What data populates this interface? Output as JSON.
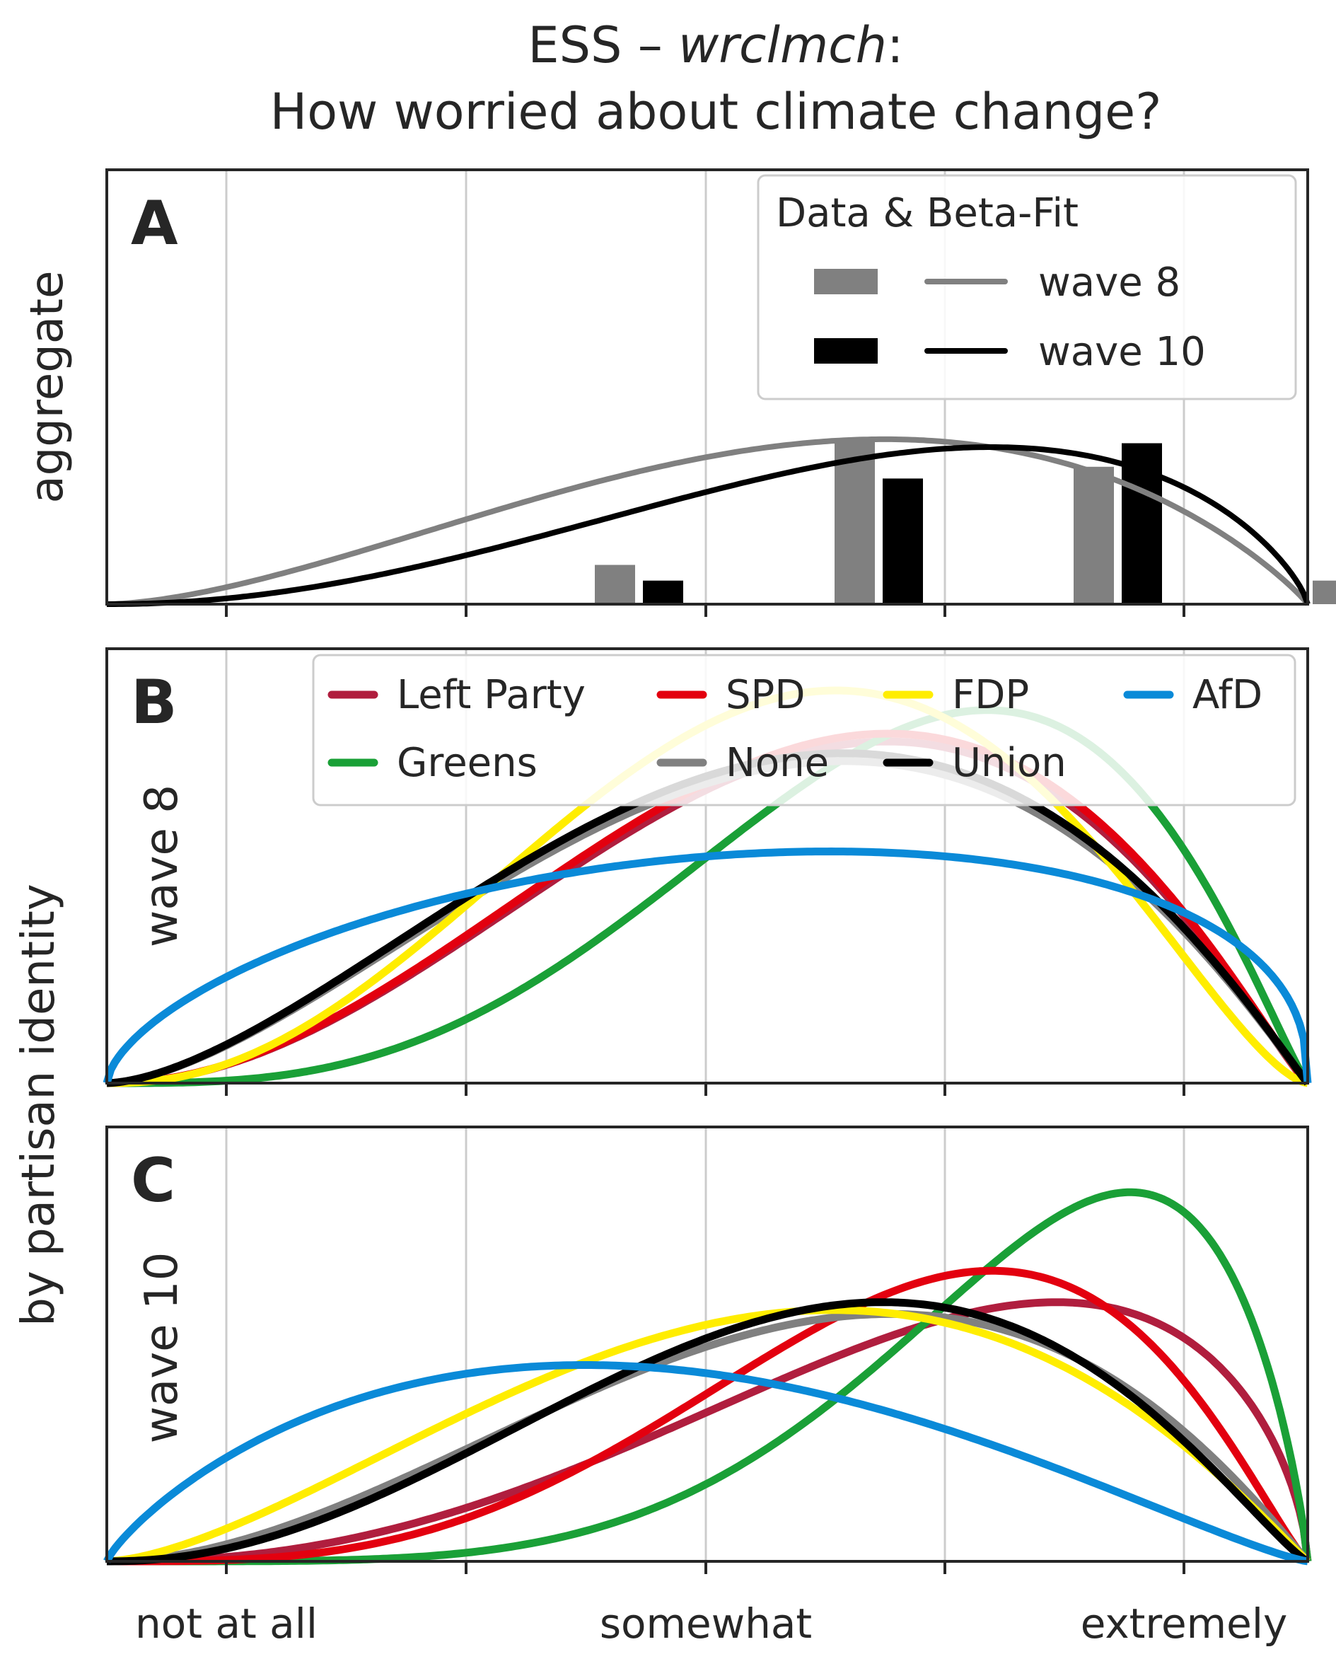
{
  "title": {
    "line1_prefix": "ESS – ",
    "line1_italic": "wrclmch",
    "line1_suffix": ":",
    "line2": "How worried about climate change?"
  },
  "colors": {
    "wave8": "#808080",
    "wave10": "#000000",
    "Left Party": "#b01e3e",
    "SPD": "#e3000f",
    "FDP": "#ffed00",
    "AfD": "#0a8ad8",
    "Greens": "#1aa037",
    "None": "#808080",
    "Union": "#000000",
    "grid": "#cccccc",
    "axes": "#262626"
  },
  "chart_data": [
    {
      "panel": "A",
      "type": "bar",
      "ylabel": "aggregate",
      "legend": {
        "title": "Data & Beta-Fit",
        "placement": "top-right",
        "entries": [
          "wave 8",
          "wave 10"
        ]
      },
      "categories": [
        "not at all",
        "",
        "somewhat",
        "",
        "extremely"
      ],
      "series": [
        {
          "name": "wave 8",
          "bar_values": [
            0.0,
            0.1,
            0.42,
            0.35,
            0.06
          ],
          "fit": {
            "type": "beta",
            "a": 2.67,
            "b": 1.91
          },
          "fit_peak": 0.42
        },
        {
          "name": "wave 10",
          "bar_values": [
            0.0,
            0.06,
            0.32,
            0.41,
            0.135
          ],
          "fit": {
            "type": "beta",
            "a": 3.12,
            "b": 1.76
          },
          "fit_peak": 0.4
        }
      ],
      "ylim": [
        0,
        1
      ],
      "grid": "vertical"
    },
    {
      "panel": "B",
      "type": "line",
      "label": "wave 8",
      "legend": {
        "placement": "top",
        "entries": [
          "Left Party",
          "SPD",
          "FDP",
          "AfD",
          "Greens",
          "None",
          "Union"
        ]
      },
      "x_ticks": [
        "not at all",
        "",
        "somewhat",
        "",
        "extremely"
      ],
      "series": [
        {
          "name": "Left Party",
          "a": 3.14,
          "b": 2.15,
          "peak": 0.87
        },
        {
          "name": "SPD",
          "a": 3.14,
          "b": 2.15,
          "peak": 0.89
        },
        {
          "name": "FDP",
          "a": 3.38,
          "b": 2.54,
          "peak": 1.0
        },
        {
          "name": "AfD",
          "a": 1.62,
          "b": 1.41,
          "peak": 0.59
        },
        {
          "name": "Greens",
          "a": 4.24,
          "b": 2.18,
          "peak": 0.95
        },
        {
          "name": "None",
          "a": 2.67,
          "b": 2.05,
          "peak": 0.82
        },
        {
          "name": "Union",
          "a": 2.67,
          "b": 2.05,
          "peak": 0.84
        }
      ],
      "grid": "vertical"
    },
    {
      "panel": "C",
      "type": "line",
      "label": "wave 10",
      "x_ticks": [
        "not at all",
        "",
        "somewhat",
        "",
        "extremely"
      ],
      "series": [
        {
          "name": "Left Party",
          "a": 3.42,
          "b": 1.64,
          "peak": 0.66
        },
        {
          "name": "SPD",
          "a": 4.45,
          "b": 2.23,
          "peak": 0.74
        },
        {
          "name": "FDP",
          "a": 2.61,
          "b": 2.05,
          "peak": 0.64
        },
        {
          "name": "AfD",
          "a": 1.82,
          "b": 2.24,
          "peak": 0.5
        },
        {
          "name": "Greens",
          "a": 5.84,
          "b": 1.84,
          "peak": 0.94
        },
        {
          "name": "None",
          "a": 2.95,
          "b": 2.04,
          "peak": 0.63
        },
        {
          "name": "Union",
          "a": 3.21,
          "b": 2.21,
          "peak": 0.66
        }
      ],
      "grid": "vertical"
    }
  ],
  "xaxis": {
    "tick_labels": [
      "not at all",
      "somewhat",
      "extremely"
    ]
  },
  "shared_ylabel": "by partisan identity"
}
